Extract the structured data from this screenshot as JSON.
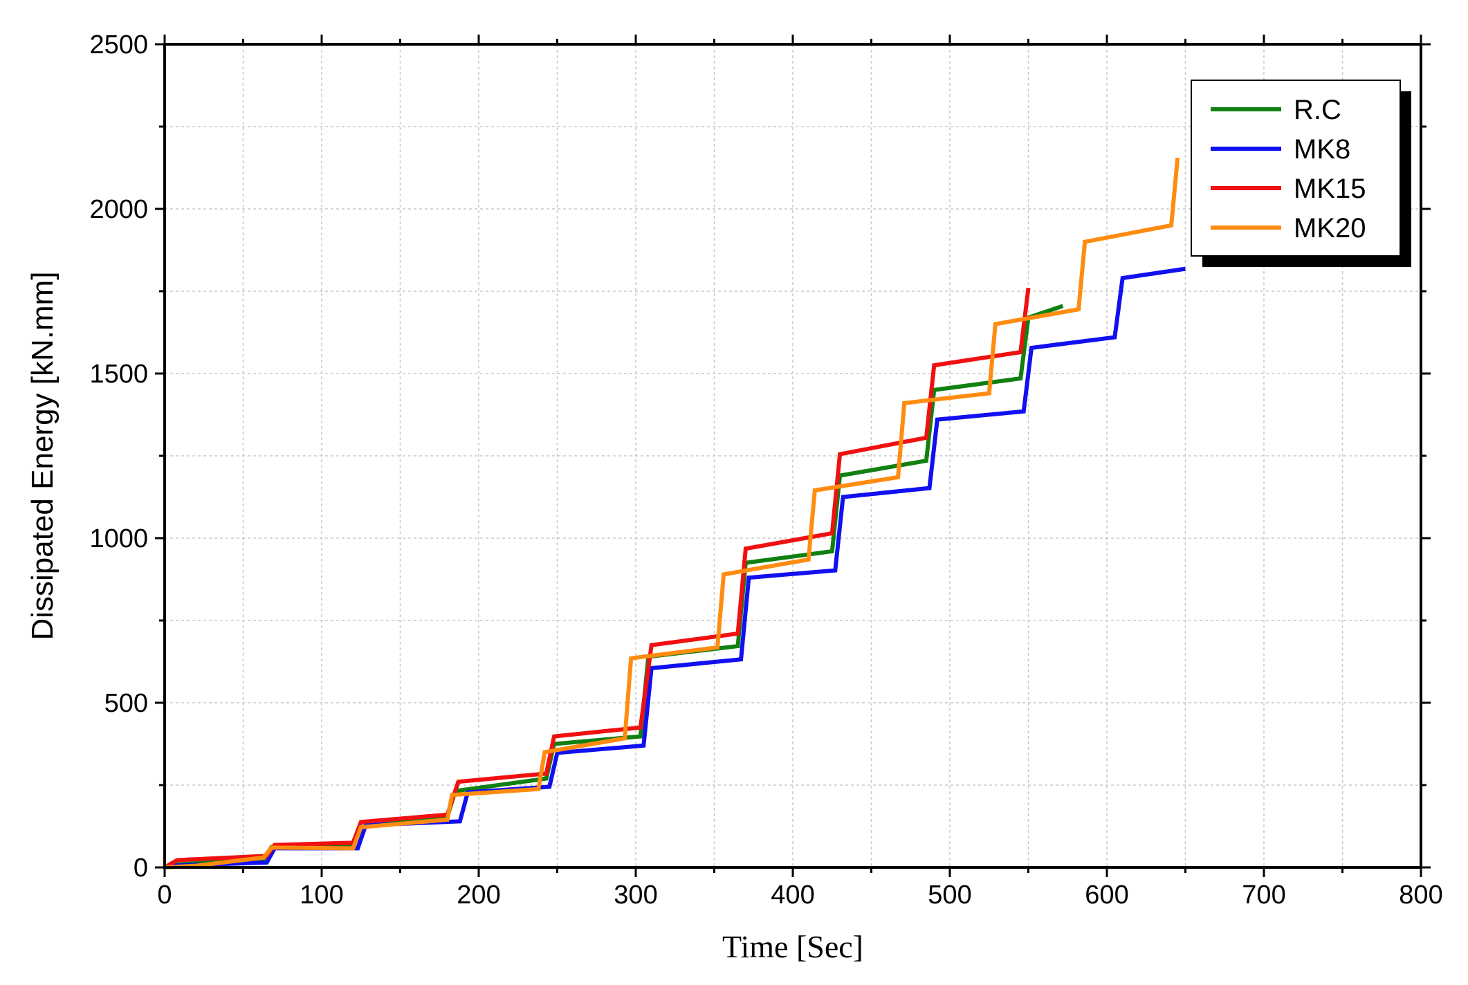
{
  "chart_data": {
    "type": "line",
    "title": "",
    "xlabel": "Time [Sec]",
    "ylabel": "Dissipated Energy [kN.mm]",
    "xlim": [
      0,
      800
    ],
    "ylim": [
      0,
      2500
    ],
    "xticks": [
      "0",
      "100",
      "200",
      "300",
      "400",
      "500",
      "600",
      "700",
      "800"
    ],
    "yticks": [
      "0",
      "500",
      "1000",
      "1500",
      "2000",
      "2500"
    ],
    "grid": true,
    "legend_position": "top-right",
    "series": [
      {
        "name": "R.C",
        "color": "#118011",
        "points": [
          [
            0,
            0
          ],
          [
            5,
            8
          ],
          [
            63,
            25
          ],
          [
            68,
            62
          ],
          [
            120,
            65
          ],
          [
            127,
            125
          ],
          [
            180,
            152
          ],
          [
            185,
            232
          ],
          [
            243,
            270
          ],
          [
            248,
            375
          ],
          [
            303,
            398
          ],
          [
            308,
            640
          ],
          [
            365,
            672
          ],
          [
            370,
            925
          ],
          [
            425,
            960
          ],
          [
            430,
            1190
          ],
          [
            485,
            1235
          ],
          [
            490,
            1450
          ],
          [
            545,
            1485
          ],
          [
            550,
            1670
          ],
          [
            572,
            1705
          ]
        ]
      },
      {
        "name": "MK8",
        "color": "#1010f0",
        "points": [
          [
            0,
            0
          ],
          [
            5,
            5
          ],
          [
            65,
            15
          ],
          [
            70,
            58
          ],
          [
            123,
            58
          ],
          [
            128,
            128
          ],
          [
            188,
            140
          ],
          [
            193,
            228
          ],
          [
            245,
            245
          ],
          [
            250,
            348
          ],
          [
            305,
            370
          ],
          [
            310,
            605
          ],
          [
            367,
            632
          ],
          [
            372,
            880
          ],
          [
            427,
            902
          ],
          [
            432,
            1125
          ],
          [
            487,
            1152
          ],
          [
            492,
            1360
          ],
          [
            547,
            1385
          ],
          [
            552,
            1578
          ],
          [
            605,
            1610
          ],
          [
            610,
            1790
          ],
          [
            650,
            1818
          ]
        ]
      },
      {
        "name": "MK15",
        "color": "#f01010",
        "points": [
          [
            0,
            0
          ],
          [
            8,
            22
          ],
          [
            65,
            35
          ],
          [
            70,
            68
          ],
          [
            120,
            75
          ],
          [
            125,
            138
          ],
          [
            180,
            160
          ],
          [
            187,
            260
          ],
          [
            243,
            285
          ],
          [
            248,
            398
          ],
          [
            303,
            425
          ],
          [
            310,
            675
          ],
          [
            365,
            710
          ],
          [
            370,
            968
          ],
          [
            425,
            1015
          ],
          [
            430,
            1255
          ],
          [
            485,
            1305
          ],
          [
            490,
            1525
          ],
          [
            545,
            1565
          ],
          [
            550,
            1760
          ]
        ]
      },
      {
        "name": "MK20",
        "color": "#ff8c10",
        "points": [
          [
            0,
            0
          ],
          [
            20,
            5
          ],
          [
            63,
            30
          ],
          [
            68,
            60
          ],
          [
            120,
            58
          ],
          [
            125,
            122
          ],
          [
            180,
            145
          ],
          [
            183,
            220
          ],
          [
            238,
            238
          ],
          [
            242,
            350
          ],
          [
            293,
            392
          ],
          [
            297,
            635
          ],
          [
            352,
            668
          ],
          [
            356,
            890
          ],
          [
            410,
            935
          ],
          [
            414,
            1145
          ],
          [
            467,
            1185
          ],
          [
            471,
            1410
          ],
          [
            525,
            1440
          ],
          [
            529,
            1650
          ],
          [
            582,
            1695
          ],
          [
            586,
            1900
          ],
          [
            641,
            1950
          ],
          [
            645,
            2155
          ]
        ]
      }
    ]
  }
}
